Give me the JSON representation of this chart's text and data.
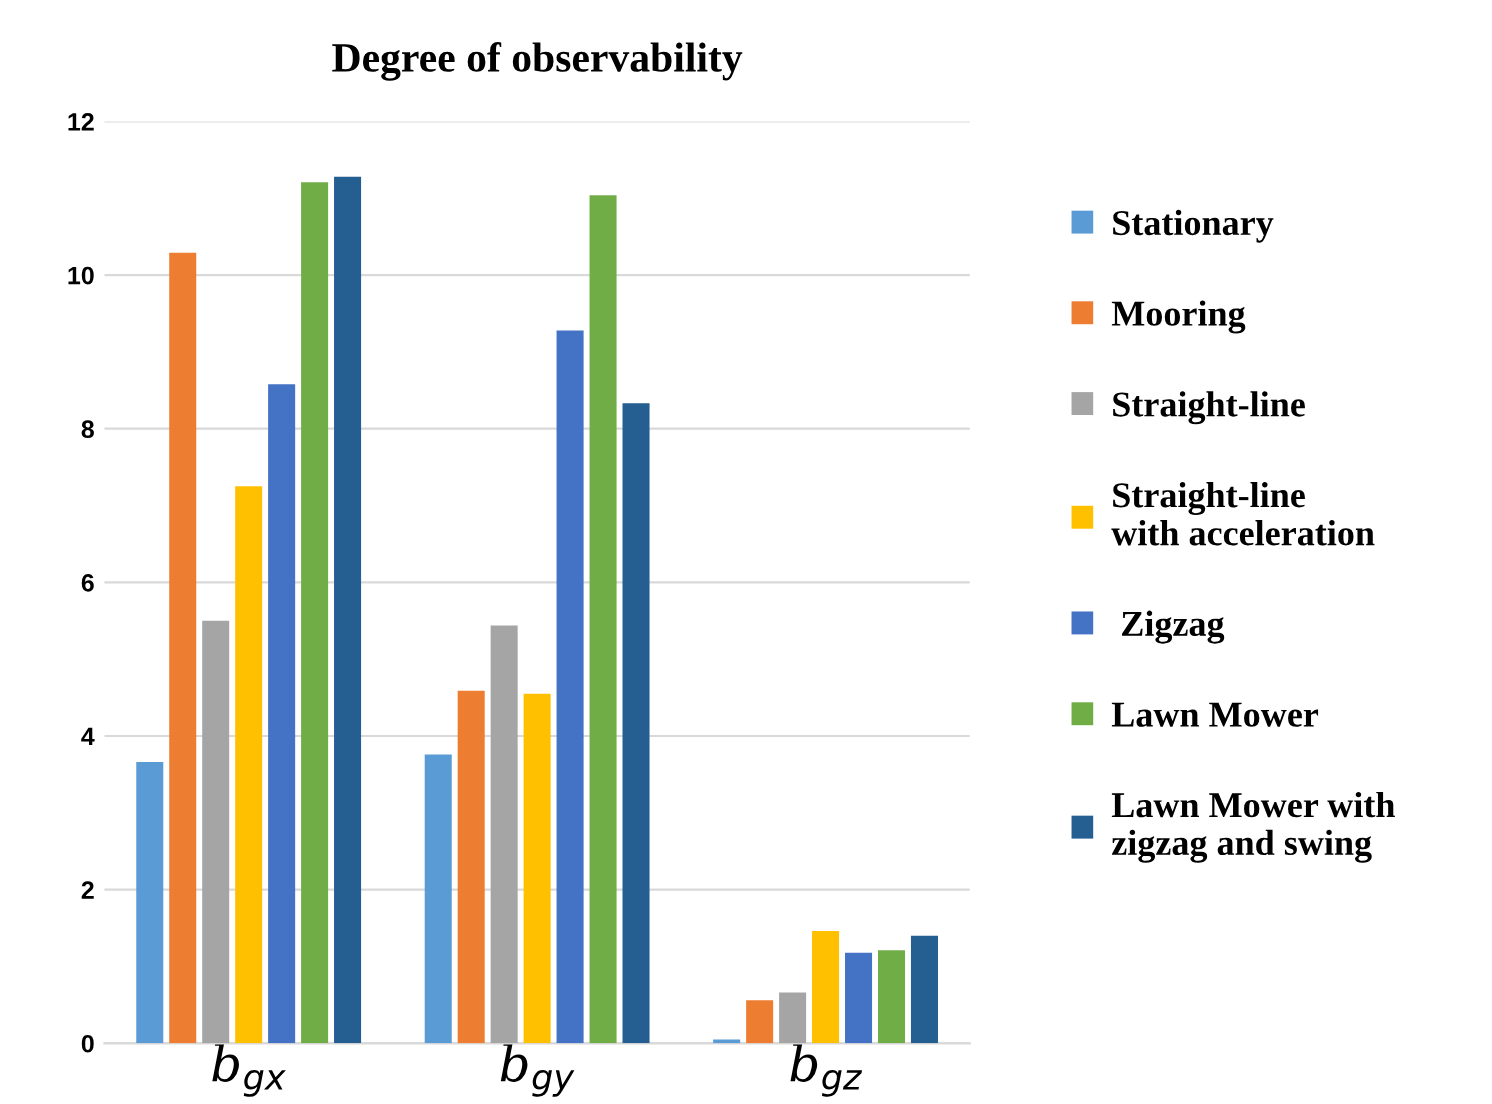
{
  "chart_data": {
    "type": "bar",
    "title": "Degree of observability",
    "categories": [
      "b$_{gx}$",
      "b$_{gy}$",
      "b$_{gz}$"
    ],
    "series": [
      {
        "name": "Stationary",
        "color": "#5b9bd5",
        "values": [
          3.66,
          3.76,
          0.05
        ]
      },
      {
        "name": "Mooring",
        "color": "#ed7d31",
        "values": [
          10.29,
          4.59,
          0.56
        ]
      },
      {
        "name": "Straight-line",
        "color": "#a5a5a5",
        "values": [
          5.5,
          5.44,
          0.66
        ]
      },
      {
        "name": "Straight-line\nwith acceleration",
        "color": "#ffc000",
        "values": [
          7.25,
          4.55,
          1.46
        ]
      },
      {
        "name": " Zigzag",
        "color": "#4472c4",
        "values": [
          8.58,
          9.28,
          1.18
        ]
      },
      {
        "name": "Lawn Mower",
        "color": "#70ad47",
        "values": [
          11.21,
          11.04,
          1.21
        ]
      },
      {
        "name": "Lawn Mower with\nzigzag and swing",
        "color": "#255e91",
        "values": [
          11.28,
          8.33,
          1.4
        ]
      }
    ],
    "ylim": [
      0,
      12
    ],
    "yticks": [
      0,
      2,
      4,
      6,
      8,
      10,
      12
    ],
    "grid": "y",
    "legend": "right"
  }
}
